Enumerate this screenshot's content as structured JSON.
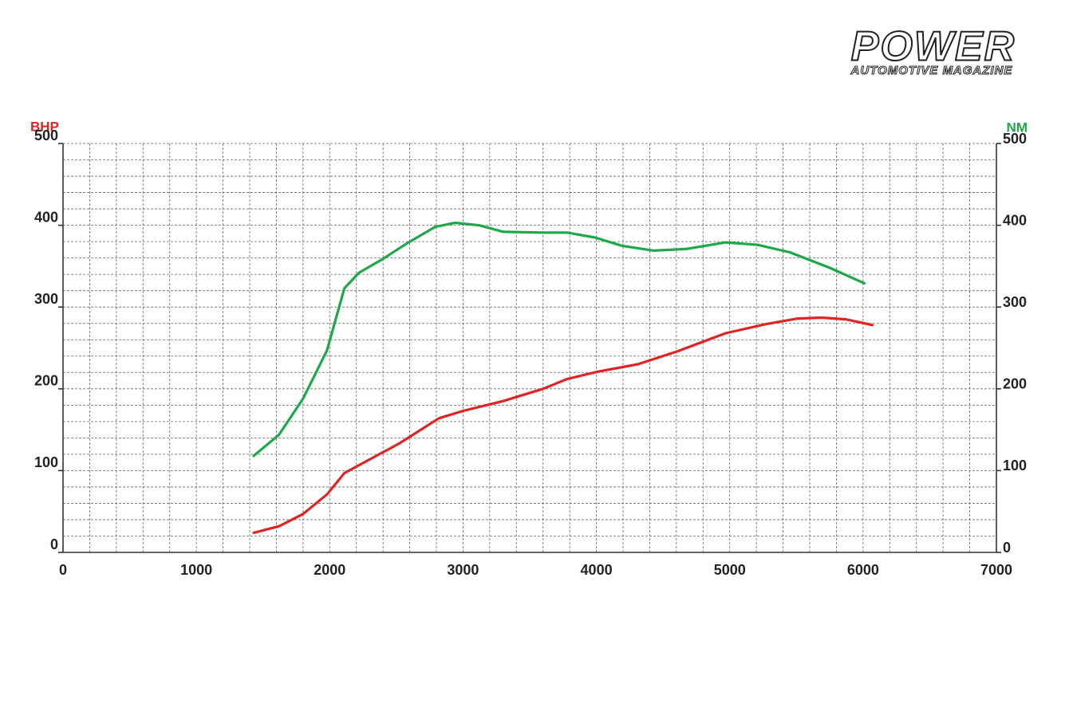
{
  "chart_data": {
    "type": "line",
    "source_title": "POWER",
    "source_subtitle": "AUTOMOTIVE MAGAZINE",
    "xlim": [
      0,
      7000
    ],
    "xticks": [
      0,
      1000,
      2000,
      3000,
      4000,
      5000,
      6000,
      7000
    ],
    "ylim": [
      0,
      500
    ],
    "yticks": [
      0,
      100,
      200,
      300,
      400,
      500
    ],
    "y2lim": [
      0,
      500
    ],
    "y2ticks": [
      0,
      100,
      200,
      300,
      400,
      500
    ],
    "grid": true,
    "series": [
      {
        "name": "BHP",
        "color": "#e02424",
        "axis": "y",
        "x": [
          1430,
          1620,
          1800,
          1980,
          2110,
          2280,
          2520,
          2820,
          3000,
          3300,
          3600,
          3780,
          4010,
          4310,
          4610,
          4970,
          5270,
          5510,
          5690,
          5870,
          6070
        ],
        "values": [
          24,
          32,
          47,
          71,
          97,
          112,
          133,
          164,
          173,
          185,
          200,
          212,
          221,
          230,
          246,
          268,
          279,
          286,
          287,
          285,
          278
        ]
      },
      {
        "name": "NM",
        "color": "#1ea84a",
        "axis": "y2",
        "x": [
          1430,
          1620,
          1800,
          1980,
          2110,
          2220,
          2400,
          2580,
          2790,
          2940,
          3120,
          3300,
          3600,
          3780,
          3990,
          4190,
          4430,
          4670,
          4970,
          5210,
          5450,
          5750,
          6010
        ],
        "values": [
          118,
          144,
          188,
          247,
          323,
          342,
          359,
          378,
          398,
          403,
          400,
          392,
          391,
          391,
          385,
          375,
          369,
          371,
          379,
          376,
          367,
          348,
          329
        ]
      }
    ]
  }
}
